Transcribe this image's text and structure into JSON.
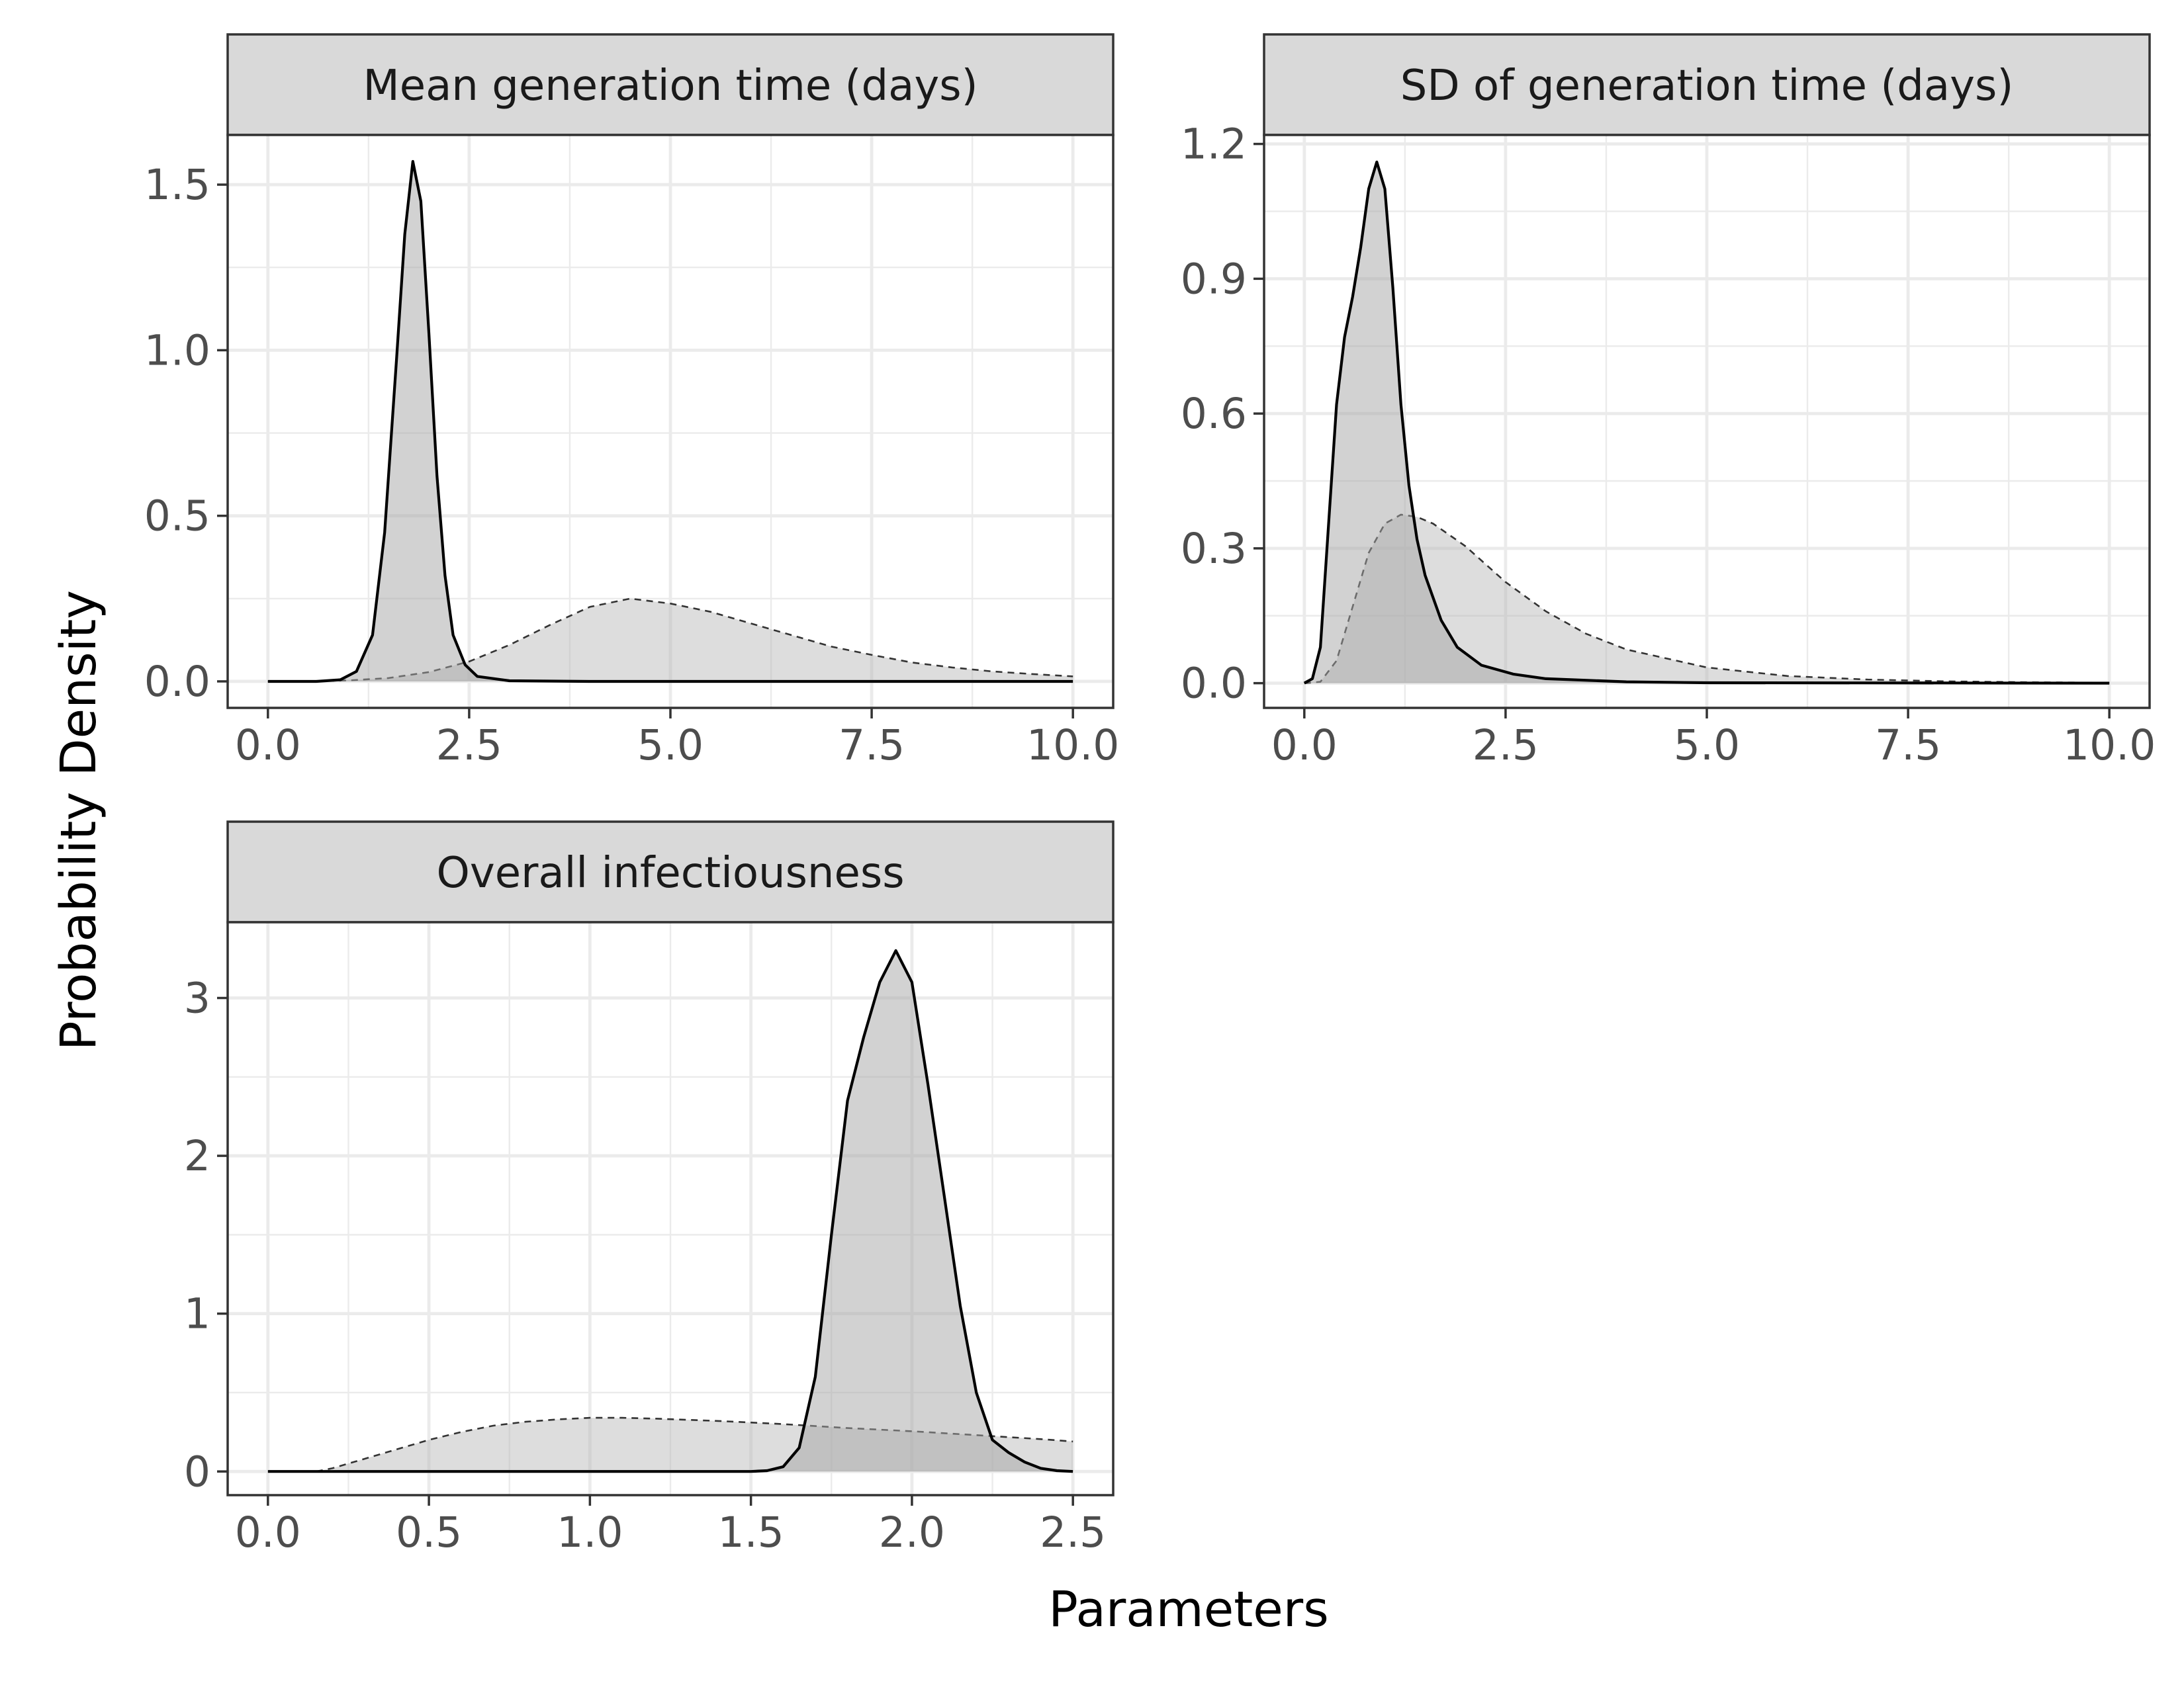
{
  "x_axis_title": "Parameters",
  "y_axis_title": "Probability Density",
  "chart_data": [
    {
      "type": "area",
      "title": "Mean generation time (days)",
      "xlim": [
        -0.5,
        10.5
      ],
      "ylim": [
        -0.08,
        1.65
      ],
      "xticks": [
        0,
        2.5,
        5,
        7.5,
        10
      ],
      "xtick_labels": [
        "0.0",
        "2.5",
        "5.0",
        "7.5",
        "10.0"
      ],
      "yticks": [
        0,
        0.5,
        1,
        1.5
      ],
      "ytick_labels": [
        "0.0",
        "0.5",
        "1.0",
        "1.5"
      ],
      "grid": true,
      "series": [
        {
          "line_style": "dashed",
          "x": [
            0,
            0.5,
            1,
            1.5,
            2,
            2.5,
            3,
            3.5,
            4,
            4.5,
            5,
            5.5,
            6,
            6.5,
            7,
            7.5,
            8,
            8.5,
            9,
            9.5,
            10
          ],
          "y": [
            0,
            0.0005,
            0.003,
            0.01,
            0.028,
            0.06,
            0.11,
            0.17,
            0.225,
            0.25,
            0.235,
            0.21,
            0.175,
            0.14,
            0.105,
            0.08,
            0.057,
            0.042,
            0.03,
            0.022,
            0.015
          ]
        },
        {
          "line_style": "solid",
          "x": [
            0,
            0.6,
            0.9,
            1.1,
            1.3,
            1.45,
            1.6,
            1.7,
            1.8,
            1.9,
            2.0,
            2.1,
            2.2,
            2.3,
            2.45,
            2.6,
            3.0,
            4.0,
            10.0
          ],
          "y": [
            0,
            0,
            0.005,
            0.03,
            0.14,
            0.45,
            0.98,
            1.35,
            1.57,
            1.45,
            1.05,
            0.62,
            0.32,
            0.14,
            0.05,
            0.015,
            0.002,
            0,
            0
          ]
        }
      ]
    },
    {
      "type": "area",
      "title": "SD of generation time (days)",
      "xlim": [
        -0.5,
        10.5
      ],
      "ylim": [
        -0.055,
        1.22
      ],
      "xticks": [
        0,
        2.5,
        5,
        7.5,
        10
      ],
      "xtick_labels": [
        "0.0",
        "2.5",
        "5.0",
        "7.5",
        "10.0"
      ],
      "yticks": [
        0,
        0.3,
        0.6,
        0.9,
        1.2
      ],
      "ytick_labels": [
        "0.0",
        "0.3",
        "0.6",
        "0.9",
        "1.2"
      ],
      "grid": true,
      "series": [
        {
          "line_style": "dashed",
          "x": [
            0,
            0.2,
            0.4,
            0.6,
            0.8,
            1.0,
            1.2,
            1.4,
            1.6,
            1.8,
            2.0,
            2.5,
            3.0,
            3.5,
            4.0,
            5.0,
            6.0,
            7.0,
            8.0,
            9.0,
            10.0
          ],
          "y": [
            0,
            0.003,
            0.05,
            0.17,
            0.29,
            0.355,
            0.375,
            0.37,
            0.355,
            0.33,
            0.305,
            0.225,
            0.16,
            0.11,
            0.075,
            0.035,
            0.016,
            0.008,
            0.004,
            0.002,
            0.001
          ]
        },
        {
          "line_style": "solid",
          "x": [
            0,
            0.1,
            0.2,
            0.3,
            0.4,
            0.5,
            0.6,
            0.7,
            0.8,
            0.9,
            1.0,
            1.1,
            1.2,
            1.3,
            1.4,
            1.5,
            1.7,
            1.9,
            2.2,
            2.6,
            3.0,
            4.0,
            5.0,
            10.0
          ],
          "y": [
            0,
            0.01,
            0.08,
            0.35,
            0.62,
            0.77,
            0.86,
            0.97,
            1.1,
            1.16,
            1.1,
            0.88,
            0.62,
            0.44,
            0.32,
            0.24,
            0.14,
            0.08,
            0.04,
            0.02,
            0.01,
            0.003,
            0.001,
            0
          ]
        }
      ]
    },
    {
      "type": "area",
      "title": "Overall infectiousness",
      "xlim": [
        -0.125,
        2.625
      ],
      "ylim": [
        -0.15,
        3.48
      ],
      "xticks": [
        0,
        0.5,
        1,
        1.5,
        2,
        2.5
      ],
      "xtick_labels": [
        "0.0",
        "0.5",
        "1.0",
        "1.5",
        "2.0",
        "2.5"
      ],
      "yticks": [
        0,
        1,
        2,
        3
      ],
      "ytick_labels": [
        "0",
        "1",
        "2",
        "3"
      ],
      "grid": true,
      "series": [
        {
          "line_style": "dashed",
          "x": [
            0.15,
            0.2,
            0.3,
            0.4,
            0.5,
            0.6,
            0.7,
            0.8,
            0.9,
            1.0,
            1.1,
            1.2,
            1.4,
            1.6,
            1.8,
            2.0,
            2.2,
            2.4,
            2.5
          ],
          "y": [
            0,
            0.02,
            0.08,
            0.14,
            0.2,
            0.25,
            0.29,
            0.315,
            0.33,
            0.34,
            0.34,
            0.335,
            0.32,
            0.3,
            0.275,
            0.255,
            0.23,
            0.205,
            0.19
          ]
        },
        {
          "line_style": "solid",
          "x": [
            0,
            1.5,
            1.55,
            1.6,
            1.65,
            1.7,
            1.75,
            1.8,
            1.85,
            1.9,
            1.95,
            2.0,
            2.05,
            2.1,
            2.15,
            2.2,
            2.25,
            2.3,
            2.35,
            2.4,
            2.45,
            2.5
          ],
          "y": [
            0,
            0,
            0.005,
            0.03,
            0.15,
            0.6,
            1.5,
            2.35,
            2.75,
            3.1,
            3.3,
            3.1,
            2.45,
            1.75,
            1.05,
            0.5,
            0.2,
            0.12,
            0.06,
            0.02,
            0.005,
            0
          ]
        }
      ]
    }
  ]
}
